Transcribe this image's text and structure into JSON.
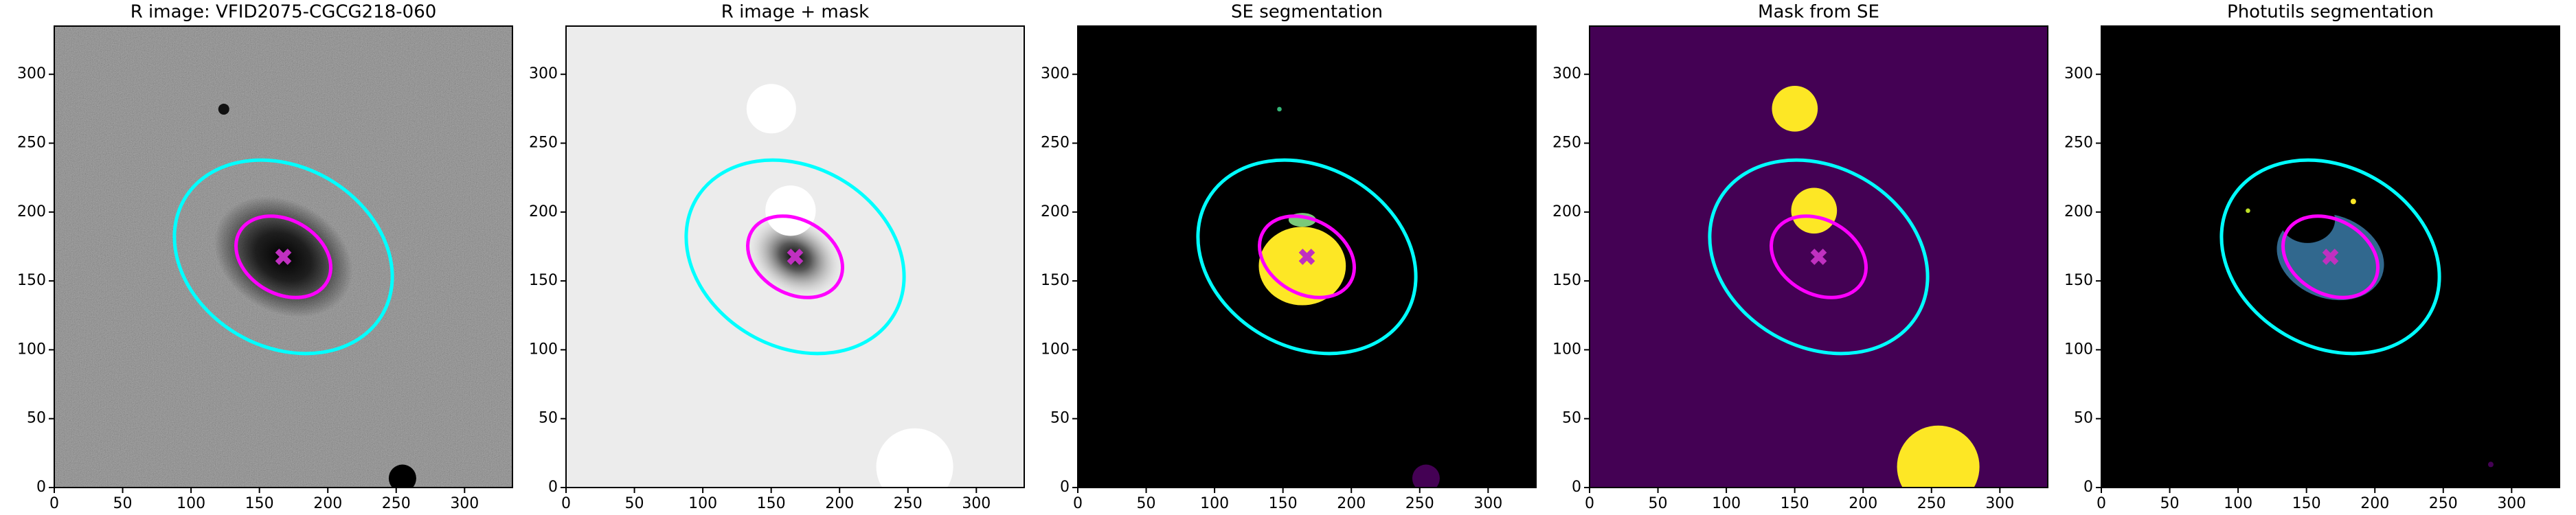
{
  "chart_data": [
    {
      "type": "image",
      "title": "R image: VFID2075-CGCG218-060",
      "xlim": [
        0,
        335
      ],
      "ylim": [
        0,
        335
      ],
      "xticks": [
        0,
        50,
        100,
        150,
        200,
        250,
        300
      ],
      "yticks": [
        0,
        50,
        100,
        150,
        200,
        250,
        300
      ]
    },
    {
      "type": "image",
      "title": "R image + mask",
      "xlim": [
        0,
        335
      ],
      "ylim": [
        0,
        335
      ],
      "xticks": [
        0,
        50,
        100,
        150,
        200,
        250,
        300
      ],
      "yticks": [
        0,
        50,
        100,
        150,
        200,
        250,
        300
      ]
    },
    {
      "type": "image",
      "title": "SE segmentation",
      "xlim": [
        0,
        335
      ],
      "ylim": [
        0,
        335
      ],
      "xticks": [
        0,
        50,
        100,
        150,
        200,
        250,
        300
      ],
      "yticks": [
        0,
        50,
        100,
        150,
        200,
        250,
        300
      ]
    },
    {
      "type": "image",
      "title": "Mask from SE",
      "xlim": [
        0,
        335
      ],
      "ylim": [
        0,
        335
      ],
      "xticks": [
        0,
        50,
        100,
        150,
        200,
        250,
        300
      ],
      "yticks": [
        0,
        50,
        100,
        150,
        200,
        250,
        300
      ]
    },
    {
      "type": "image",
      "title": "Photutils segmentation",
      "xlim": [
        0,
        335
      ],
      "ylim": [
        0,
        335
      ],
      "xticks": [
        0,
        50,
        100,
        150,
        200,
        250,
        300
      ],
      "yticks": [
        0,
        50,
        100,
        150,
        200,
        250,
        300
      ]
    }
  ]
}
